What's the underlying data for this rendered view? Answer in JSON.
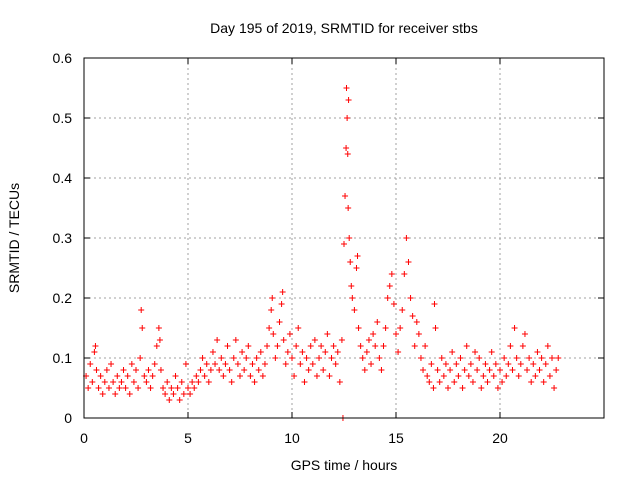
{
  "chart_data": {
    "type": "scatter",
    "title": "Day 195 of 2019, SRMTID for receiver stbs",
    "xlabel": "GPS time / hours",
    "ylabel": "SRMTID / TECUs",
    "xlim": [
      0,
      25
    ],
    "ylim": [
      0,
      0.6
    ],
    "xticks": [
      0,
      5,
      10,
      15,
      20
    ],
    "xtick_labels": [
      "0",
      "5",
      "10",
      "15",
      "20"
    ],
    "yticks": [
      0,
      0.1,
      0.2,
      0.3,
      0.4,
      0.5,
      0.6
    ],
    "ytick_labels": [
      "0",
      "0.1",
      "0.2",
      "0.3",
      "0.4",
      "0.5",
      "0.6"
    ],
    "grid": true,
    "marker": "plus",
    "series_color": "#ff0000",
    "series": [
      {
        "name": "SRMTID",
        "points": [
          [
            0.1,
            0.07
          ],
          [
            0.2,
            0.05
          ],
          [
            0.3,
            0.09
          ],
          [
            0.4,
            0.06
          ],
          [
            0.5,
            0.11
          ],
          [
            0.55,
            0.12
          ],
          [
            0.6,
            0.08
          ],
          [
            0.7,
            0.05
          ],
          [
            0.8,
            0.07
          ],
          [
            0.9,
            0.04
          ],
          [
            1.0,
            0.06
          ],
          [
            1.1,
            0.08
          ],
          [
            1.2,
            0.05
          ],
          [
            1.3,
            0.09
          ],
          [
            1.4,
            0.06
          ],
          [
            1.5,
            0.04
          ],
          [
            1.6,
            0.07
          ],
          [
            1.7,
            0.05
          ],
          [
            1.8,
            0.06
          ],
          [
            1.9,
            0.08
          ],
          [
            2.0,
            0.05
          ],
          [
            2.1,
            0.07
          ],
          [
            2.2,
            0.04
          ],
          [
            2.3,
            0.09
          ],
          [
            2.4,
            0.06
          ],
          [
            2.5,
            0.08
          ],
          [
            2.6,
            0.05
          ],
          [
            2.7,
            0.1
          ],
          [
            2.75,
            0.18
          ],
          [
            2.8,
            0.15
          ],
          [
            2.9,
            0.07
          ],
          [
            3.0,
            0.06
          ],
          [
            3.1,
            0.08
          ],
          [
            3.2,
            0.05
          ],
          [
            3.3,
            0.07
          ],
          [
            3.4,
            0.09
          ],
          [
            3.5,
            0.12
          ],
          [
            3.6,
            0.15
          ],
          [
            3.65,
            0.13
          ],
          [
            3.7,
            0.08
          ],
          [
            3.8,
            0.05
          ],
          [
            3.9,
            0.04
          ],
          [
            4.0,
            0.06
          ],
          [
            4.1,
            0.03
          ],
          [
            4.2,
            0.05
          ],
          [
            4.3,
            0.04
          ],
          [
            4.4,
            0.07
          ],
          [
            4.5,
            0.05
          ],
          [
            4.6,
            0.03
          ],
          [
            4.7,
            0.06
          ],
          [
            4.8,
            0.04
          ],
          [
            4.9,
            0.09
          ],
          [
            5.0,
            0.05
          ],
          [
            5.1,
            0.04
          ],
          [
            5.2,
            0.06
          ],
          [
            5.3,
            0.05
          ],
          [
            5.4,
            0.07
          ],
          [
            5.5,
            0.06
          ],
          [
            5.6,
            0.08
          ],
          [
            5.7,
            0.1
          ],
          [
            5.8,
            0.07
          ],
          [
            5.9,
            0.09
          ],
          [
            6.0,
            0.06
          ],
          [
            6.1,
            0.08
          ],
          [
            6.2,
            0.11
          ],
          [
            6.3,
            0.09
          ],
          [
            6.4,
            0.13
          ],
          [
            6.5,
            0.08
          ],
          [
            6.6,
            0.1
          ],
          [
            6.7,
            0.07
          ],
          [
            6.8,
            0.09
          ],
          [
            6.9,
            0.12
          ],
          [
            7.0,
            0.08
          ],
          [
            7.1,
            0.06
          ],
          [
            7.2,
            0.1
          ],
          [
            7.3,
            0.13
          ],
          [
            7.4,
            0.09
          ],
          [
            7.5,
            0.07
          ],
          [
            7.6,
            0.11
          ],
          [
            7.7,
            0.08
          ],
          [
            7.8,
            0.1
          ],
          [
            7.9,
            0.12
          ],
          [
            8.0,
            0.07
          ],
          [
            8.1,
            0.09
          ],
          [
            8.2,
            0.06
          ],
          [
            8.3,
            0.1
          ],
          [
            8.4,
            0.08
          ],
          [
            8.5,
            0.11
          ],
          [
            8.6,
            0.07
          ],
          [
            8.7,
            0.09
          ],
          [
            8.8,
            0.12
          ],
          [
            8.9,
            0.15
          ],
          [
            9.0,
            0.18
          ],
          [
            9.05,
            0.2
          ],
          [
            9.1,
            0.14
          ],
          [
            9.2,
            0.1
          ],
          [
            9.3,
            0.12
          ],
          [
            9.4,
            0.16
          ],
          [
            9.5,
            0.19
          ],
          [
            9.55,
            0.21
          ],
          [
            9.6,
            0.13
          ],
          [
            9.7,
            0.09
          ],
          [
            9.8,
            0.11
          ],
          [
            9.9,
            0.14
          ],
          [
            10.0,
            0.1
          ],
          [
            10.1,
            0.07
          ],
          [
            10.2,
            0.12
          ],
          [
            10.3,
            0.15
          ],
          [
            10.4,
            0.09
          ],
          [
            10.5,
            0.11
          ],
          [
            10.6,
            0.06
          ],
          [
            10.7,
            0.1
          ],
          [
            10.8,
            0.08
          ],
          [
            10.9,
            0.12
          ],
          [
            11.0,
            0.09
          ],
          [
            11.1,
            0.13
          ],
          [
            11.2,
            0.07
          ],
          [
            11.3,
            0.1
          ],
          [
            11.4,
            0.12
          ],
          [
            11.5,
            0.08
          ],
          [
            11.6,
            0.11
          ],
          [
            11.7,
            0.14
          ],
          [
            11.8,
            0.07
          ],
          [
            11.9,
            0.1
          ],
          [
            12.0,
            0.12
          ],
          [
            12.1,
            0.09
          ],
          [
            12.2,
            0.11
          ],
          [
            12.3,
            0.06
          ],
          [
            12.4,
            0.13
          ],
          [
            12.45,
            0.0
          ],
          [
            12.5,
            0.29
          ],
          [
            12.55,
            0.37
          ],
          [
            12.6,
            0.45
          ],
          [
            12.62,
            0.55
          ],
          [
            12.65,
            0.5
          ],
          [
            12.68,
            0.44
          ],
          [
            12.7,
            0.35
          ],
          [
            12.72,
            0.53
          ],
          [
            12.75,
            0.3
          ],
          [
            12.8,
            0.26
          ],
          [
            12.85,
            0.22
          ],
          [
            12.9,
            0.2
          ],
          [
            13.0,
            0.18
          ],
          [
            13.1,
            0.25
          ],
          [
            13.15,
            0.27
          ],
          [
            13.2,
            0.15
          ],
          [
            13.3,
            0.12
          ],
          [
            13.4,
            0.1
          ],
          [
            13.5,
            0.08
          ],
          [
            13.6,
            0.11
          ],
          [
            13.7,
            0.13
          ],
          [
            13.8,
            0.09
          ],
          [
            13.9,
            0.14
          ],
          [
            14.0,
            0.12
          ],
          [
            14.1,
            0.16
          ],
          [
            14.2,
            0.1
          ],
          [
            14.3,
            0.08
          ],
          [
            14.4,
            0.12
          ],
          [
            14.5,
            0.15
          ],
          [
            14.6,
            0.2
          ],
          [
            14.7,
            0.22
          ],
          [
            14.8,
            0.24
          ],
          [
            14.9,
            0.19
          ],
          [
            15.0,
            0.14
          ],
          [
            15.1,
            0.11
          ],
          [
            15.2,
            0.15
          ],
          [
            15.3,
            0.18
          ],
          [
            15.4,
            0.24
          ],
          [
            15.5,
            0.3
          ],
          [
            15.6,
            0.26
          ],
          [
            15.7,
            0.2
          ],
          [
            15.8,
            0.17
          ],
          [
            15.9,
            0.12
          ],
          [
            16.0,
            0.16
          ],
          [
            16.1,
            0.14
          ],
          [
            16.2,
            0.1
          ],
          [
            16.3,
            0.08
          ],
          [
            16.4,
            0.12
          ],
          [
            16.5,
            0.07
          ],
          [
            16.6,
            0.06
          ],
          [
            16.7,
            0.09
          ],
          [
            16.8,
            0.05
          ],
          [
            16.85,
            0.19
          ],
          [
            16.9,
            0.15
          ],
          [
            17.0,
            0.08
          ],
          [
            17.1,
            0.06
          ],
          [
            17.2,
            0.1
          ],
          [
            17.3,
            0.07
          ],
          [
            17.4,
            0.09
          ],
          [
            17.5,
            0.05
          ],
          [
            17.6,
            0.08
          ],
          [
            17.7,
            0.11
          ],
          [
            17.8,
            0.06
          ],
          [
            17.9,
            0.09
          ],
          [
            18.0,
            0.07
          ],
          [
            18.1,
            0.1
          ],
          [
            18.2,
            0.05
          ],
          [
            18.3,
            0.08
          ],
          [
            18.4,
            0.12
          ],
          [
            18.5,
            0.07
          ],
          [
            18.6,
            0.09
          ],
          [
            18.7,
            0.06
          ],
          [
            18.8,
            0.11
          ],
          [
            18.9,
            0.08
          ],
          [
            19.0,
            0.1
          ],
          [
            19.1,
            0.05
          ],
          [
            19.2,
            0.07
          ],
          [
            19.3,
            0.09
          ],
          [
            19.4,
            0.06
          ],
          [
            19.5,
            0.08
          ],
          [
            19.6,
            0.11
          ],
          [
            19.7,
            0.07
          ],
          [
            19.8,
            0.09
          ],
          [
            19.9,
            0.05
          ],
          [
            20.0,
            0.08
          ],
          [
            20.1,
            0.06
          ],
          [
            20.2,
            0.1
          ],
          [
            20.3,
            0.07
          ],
          [
            20.4,
            0.09
          ],
          [
            20.5,
            0.12
          ],
          [
            20.6,
            0.08
          ],
          [
            20.7,
            0.15
          ],
          [
            20.8,
            0.1
          ],
          [
            20.9,
            0.07
          ],
          [
            21.0,
            0.09
          ],
          [
            21.1,
            0.12
          ],
          [
            21.2,
            0.14
          ],
          [
            21.3,
            0.08
          ],
          [
            21.4,
            0.1
          ],
          [
            21.5,
            0.06
          ],
          [
            21.6,
            0.09
          ],
          [
            21.7,
            0.07
          ],
          [
            21.8,
            0.11
          ],
          [
            21.9,
            0.08
          ],
          [
            22.0,
            0.1
          ],
          [
            22.1,
            0.06
          ],
          [
            22.2,
            0.09
          ],
          [
            22.3,
            0.12
          ],
          [
            22.4,
            0.07
          ],
          [
            22.5,
            0.1
          ],
          [
            22.6,
            0.05
          ],
          [
            22.7,
            0.08
          ],
          [
            22.8,
            0.1
          ]
        ]
      }
    ]
  }
}
